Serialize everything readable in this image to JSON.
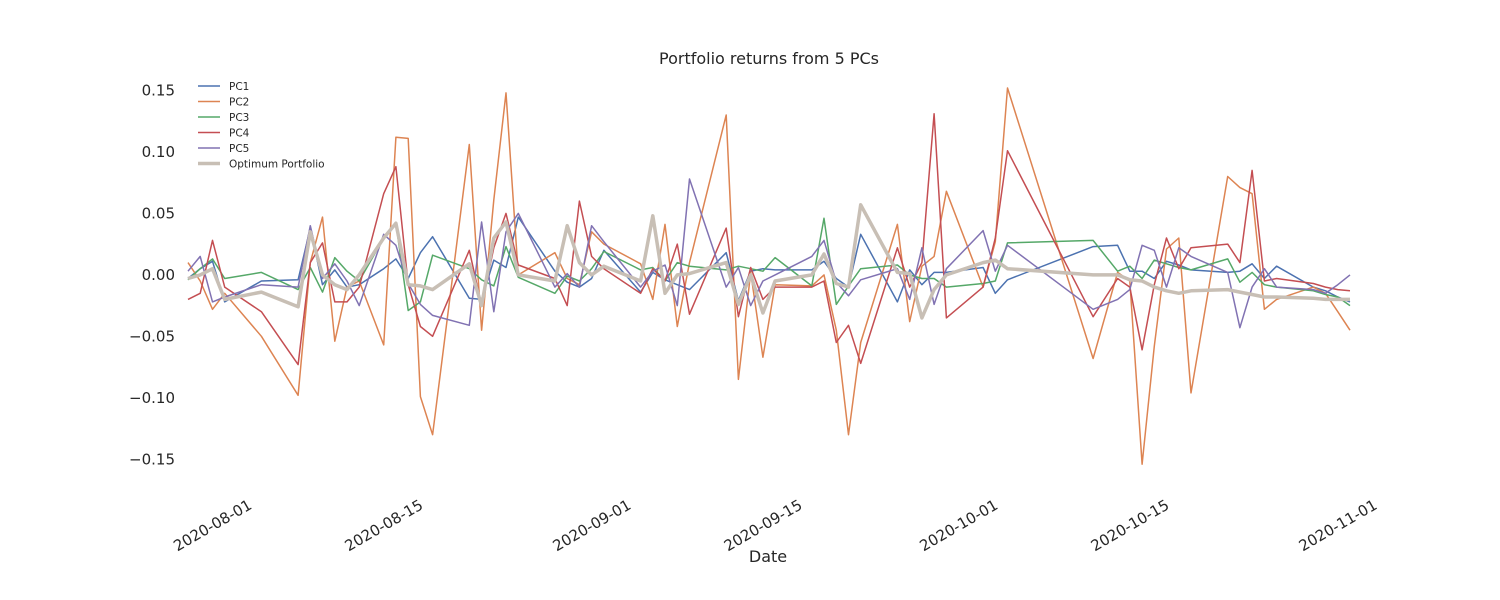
{
  "chart_data": {
    "type": "line",
    "title": "Portfolio returns from 5 PCs",
    "xlabel": "Date",
    "ylabel": "",
    "xlim": [
      "2020-07-28",
      "2020-10-31"
    ],
    "ylim": [
      -0.175,
      0.165
    ],
    "x_ticks": [
      "2020-08-01",
      "2020-08-15",
      "2020-09-01",
      "2020-09-15",
      "2020-10-01",
      "2020-10-15",
      "2020-11-01"
    ],
    "y_ticks": [
      0.15,
      0.1,
      0.05,
      0.0,
      -0.05,
      -0.1,
      -0.15
    ],
    "y_tick_labels": [
      "0.15",
      "0.10",
      "0.05",
      "0.00",
      "−0.05",
      "−0.10",
      "−0.15"
    ],
    "grid": false,
    "legend_position": "top-left",
    "x": [
      "2020-07-28",
      "2020-07-29",
      "2020-07-30",
      "2020-07-31",
      "2020-08-03",
      "2020-08-06",
      "2020-08-07",
      "2020-08-08",
      "2020-08-09",
      "2020-08-10",
      "2020-08-11",
      "2020-08-13",
      "2020-08-14",
      "2020-08-15",
      "2020-08-16",
      "2020-08-17",
      "2020-08-20",
      "2020-08-21",
      "2020-08-22",
      "2020-08-23",
      "2020-08-24",
      "2020-08-27",
      "2020-08-28",
      "2020-08-29",
      "2020-08-30",
      "2020-08-31",
      "2020-09-03",
      "2020-09-04",
      "2020-09-05",
      "2020-09-06",
      "2020-09-07",
      "2020-09-10",
      "2020-09-11",
      "2020-09-12",
      "2020-09-13",
      "2020-09-14",
      "2020-09-17",
      "2020-09-18",
      "2020-09-19",
      "2020-09-20",
      "2020-09-21",
      "2020-09-24",
      "2020-09-25",
      "2020-09-26",
      "2020-09-27",
      "2020-09-28",
      "2020-10-01",
      "2020-10-02",
      "2020-10-03",
      "2020-10-10",
      "2020-10-12",
      "2020-10-13",
      "2020-10-14",
      "2020-10-15",
      "2020-10-16",
      "2020-10-17",
      "2020-10-18",
      "2020-10-21",
      "2020-10-22",
      "2020-10-23",
      "2020-10-24",
      "2020-10-25",
      "2020-10-28",
      "2020-10-29",
      "2020-10-30",
      "2020-10-31"
    ],
    "series": [
      {
        "name": "PC1",
        "color": "#4c72b0",
        "width": 1.5,
        "values": [
          -0.003,
          0.005,
          0.011,
          -0.022,
          -0.005,
          -0.004,
          0.038,
          -0.008,
          0.004,
          -0.01,
          -0.008,
          0.005,
          0.013,
          -0.003,
          0.018,
          0.031,
          -0.019,
          -0.02,
          0.012,
          0.006,
          0.047,
          0.003,
          -0.006,
          -0.01,
          -0.003,
          0.02,
          -0.014,
          0.002,
          -0.004,
          -0.008,
          -0.012,
          0.018,
          -0.021,
          0.003,
          0.005,
          0.004,
          0.004,
          0.011,
          -0.003,
          -0.01,
          0.033,
          -0.022,
          0.004,
          -0.008,
          0.002,
          0.002,
          0.006,
          -0.015,
          -0.004,
          0.023,
          0.024,
          0.003,
          0.003,
          -0.003,
          0.011,
          0.008,
          0.004,
          0.002,
          0.003,
          0.009,
          -0.003,
          0.007,
          -0.01,
          -0.013,
          -0.018,
          -0.022
        ]
      },
      {
        "name": "PC2",
        "color": "#dd8452",
        "width": 1.5,
        "values": [
          0.01,
          -0.005,
          -0.028,
          -0.015,
          -0.05,
          -0.098,
          0.01,
          0.047,
          -0.054,
          -0.01,
          -0.005,
          -0.057,
          0.112,
          0.111,
          -0.099,
          -0.13,
          0.106,
          -0.045,
          0.061,
          0.148,
          0.0,
          0.018,
          -0.003,
          -0.008,
          0.035,
          0.025,
          0.009,
          -0.02,
          0.041,
          -0.042,
          0.01,
          0.13,
          -0.085,
          0.002,
          -0.067,
          -0.008,
          -0.009,
          0.0,
          -0.045,
          -0.13,
          -0.055,
          0.041,
          -0.038,
          0.007,
          0.015,
          0.068,
          -0.01,
          0.027,
          0.152,
          -0.068,
          0.002,
          -0.005,
          -0.154,
          -0.058,
          0.021,
          0.03,
          -0.096,
          0.08,
          0.071,
          0.066,
          -0.028,
          -0.02,
          -0.01,
          -0.015,
          -0.03,
          -0.045
        ]
      },
      {
        "name": "PC3",
        "color": "#55a868",
        "width": 1.5,
        "values": [
          -0.004,
          0.005,
          0.013,
          -0.003,
          0.002,
          -0.012,
          0.006,
          -0.014,
          0.014,
          0.003,
          -0.005,
          0.03,
          0.042,
          -0.029,
          -0.022,
          0.016,
          0.005,
          -0.004,
          -0.009,
          0.023,
          -0.002,
          -0.015,
          -0.001,
          -0.005,
          0.005,
          0.019,
          0.004,
          0.006,
          -0.005,
          0.01,
          0.007,
          0.004,
          0.007,
          0.005,
          0.003,
          0.014,
          -0.009,
          0.046,
          -0.024,
          -0.009,
          0.005,
          0.008,
          0.0,
          -0.003,
          -0.003,
          -0.01,
          -0.007,
          -0.005,
          0.026,
          0.028,
          0.003,
          0.007,
          -0.003,
          0.012,
          0.009,
          0.006,
          0.004,
          0.013,
          -0.006,
          0.002,
          -0.008,
          -0.01,
          -0.013,
          -0.016,
          -0.018,
          -0.025
        ]
      },
      {
        "name": "PC4",
        "color": "#c44e52",
        "width": 1.5,
        "values": [
          -0.02,
          -0.015,
          0.028,
          -0.01,
          -0.03,
          -0.073,
          0.01,
          0.026,
          -0.022,
          -0.022,
          -0.01,
          0.066,
          0.088,
          -0.008,
          -0.042,
          -0.05,
          0.02,
          -0.025,
          0.022,
          0.05,
          0.008,
          -0.003,
          -0.025,
          0.06,
          0.015,
          0.005,
          -0.015,
          0.005,
          -0.005,
          0.025,
          -0.032,
          0.038,
          -0.034,
          0.006,
          -0.02,
          -0.01,
          -0.01,
          -0.005,
          -0.055,
          -0.041,
          -0.072,
          0.022,
          -0.01,
          0.01,
          0.131,
          -0.035,
          -0.01,
          0.03,
          0.101,
          -0.034,
          -0.003,
          -0.01,
          -0.061,
          -0.008,
          0.03,
          0.005,
          0.022,
          0.025,
          0.01,
          0.085,
          -0.005,
          -0.003,
          -0.007,
          -0.01,
          -0.012,
          -0.013
        ]
      },
      {
        "name": "PC5",
        "color": "#8172b2",
        "width": 1.5,
        "values": [
          0.003,
          0.015,
          -0.022,
          -0.018,
          -0.008,
          -0.01,
          0.04,
          -0.003,
          0.009,
          -0.005,
          -0.025,
          0.033,
          0.024,
          -0.007,
          -0.024,
          -0.033,
          -0.041,
          0.043,
          -0.03,
          0.035,
          0.05,
          -0.01,
          0.001,
          -0.01,
          0.04,
          0.027,
          -0.01,
          0.003,
          0.008,
          -0.025,
          0.078,
          -0.01,
          0.006,
          -0.025,
          -0.005,
          0.0,
          0.015,
          0.028,
          -0.006,
          -0.017,
          -0.004,
          0.005,
          -0.02,
          0.022,
          -0.024,
          0.005,
          0.036,
          0.003,
          0.024,
          -0.028,
          -0.02,
          -0.012,
          0.024,
          0.02,
          -0.01,
          0.022,
          0.015,
          0.002,
          -0.043,
          -0.01,
          0.005,
          -0.01,
          -0.012,
          -0.015,
          -0.008,
          0.0
        ]
      },
      {
        "name": "Optimum Portfolio",
        "color": "#c8bfb5",
        "width": 3.5,
        "values": [
          -0.003,
          0.0,
          0.005,
          -0.02,
          -0.014,
          -0.026,
          0.035,
          0.0,
          -0.008,
          -0.012,
          0.0,
          0.03,
          0.042,
          -0.008,
          -0.009,
          -0.012,
          0.009,
          -0.025,
          0.03,
          0.043,
          0.0,
          -0.005,
          0.04,
          0.01,
          0.0,
          0.007,
          -0.005,
          0.048,
          -0.015,
          0.0,
          0.001,
          0.01,
          -0.024,
          0.0,
          -0.031,
          -0.005,
          0.0,
          0.017,
          -0.007,
          -0.01,
          0.057,
          0.002,
          0.001,
          -0.035,
          -0.012,
          0.0,
          0.01,
          0.012,
          0.005,
          0.0,
          0.0,
          -0.004,
          -0.005,
          -0.01,
          -0.013,
          -0.015,
          -0.013,
          -0.012,
          -0.014,
          -0.016,
          -0.018,
          -0.018,
          -0.019,
          -0.02,
          -0.02,
          -0.02
        ]
      }
    ]
  }
}
